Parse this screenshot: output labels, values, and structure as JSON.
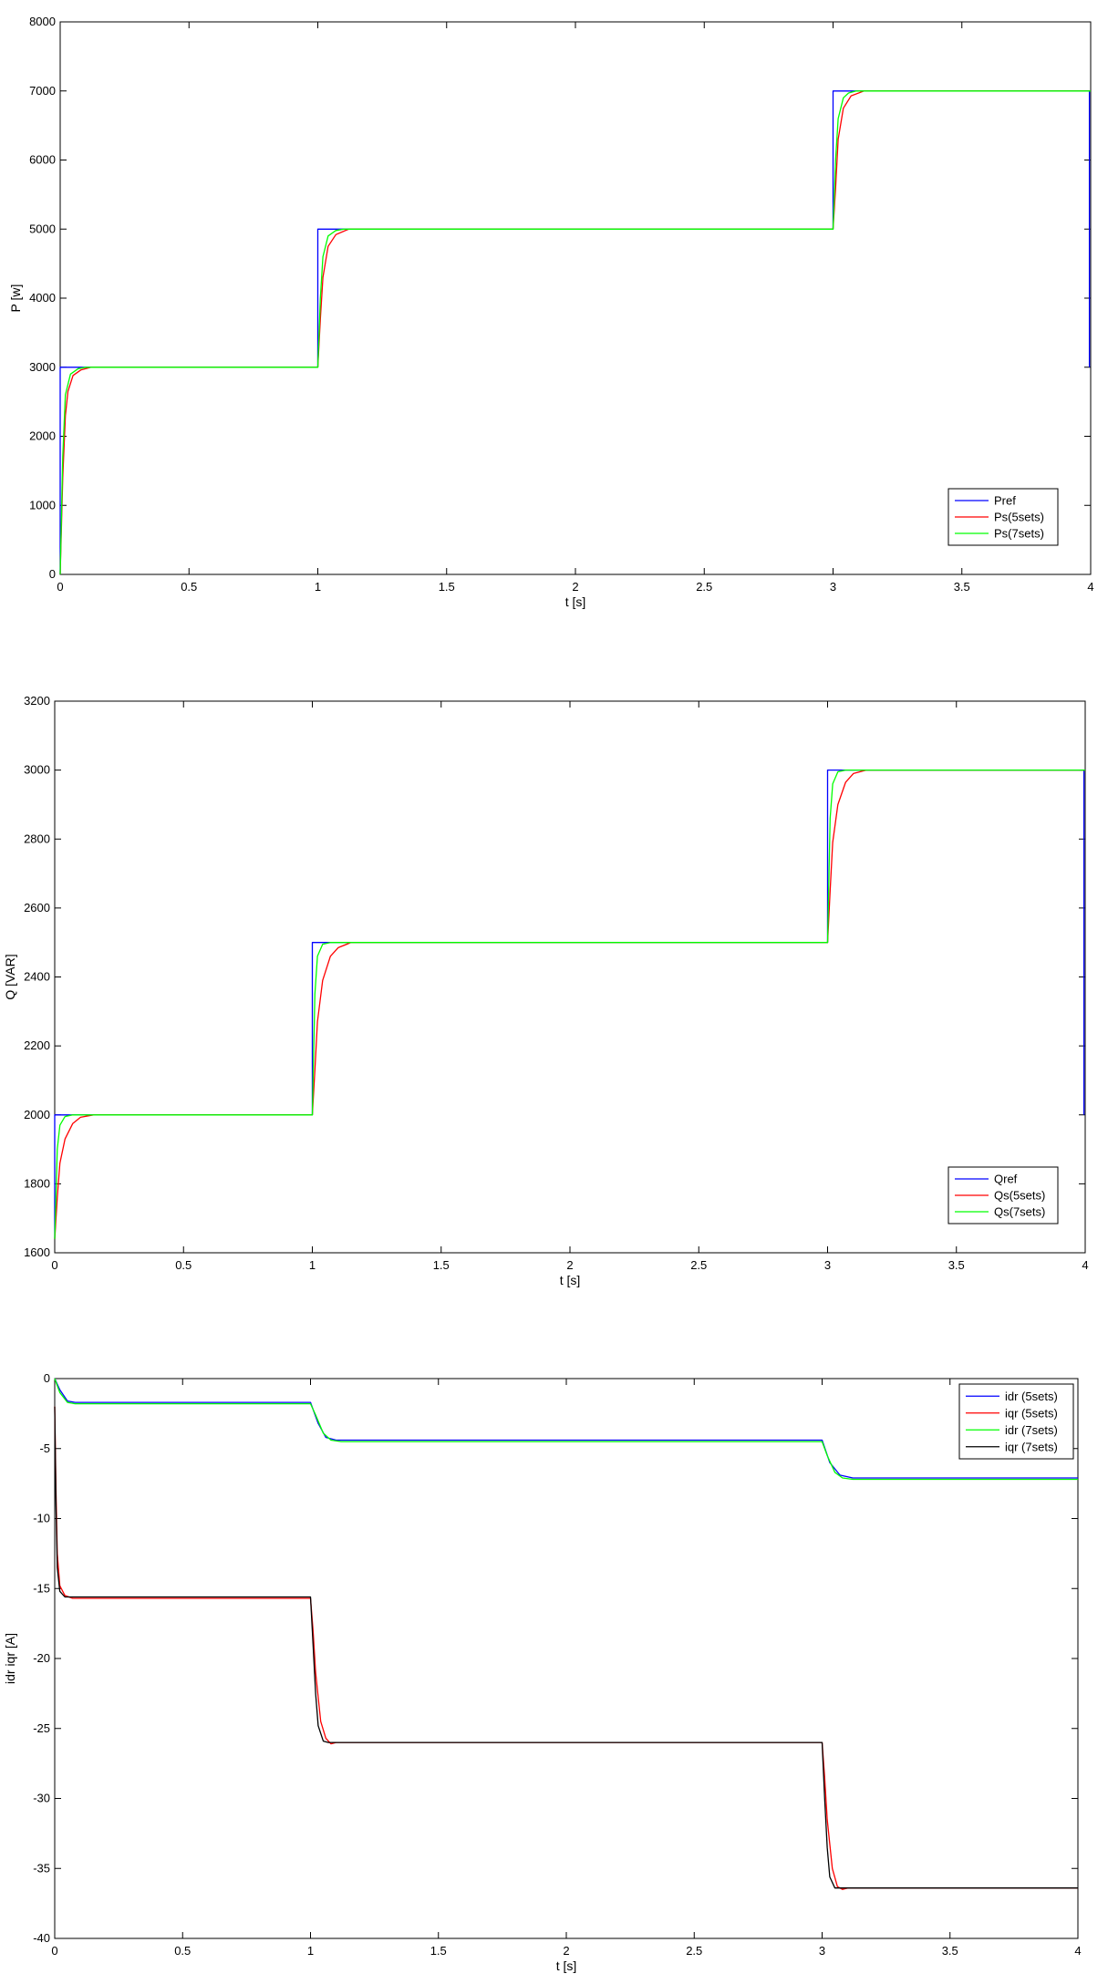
{
  "chart_data": [
    {
      "type": "line",
      "xlabel": "t [s]",
      "ylabel": "P [w]",
      "xlim": [
        0,
        4
      ],
      "ylim": [
        0,
        8000
      ],
      "xticks": [
        0,
        0.5,
        1,
        1.5,
        2,
        2.5,
        3,
        3.5,
        4
      ],
      "xtick_labels": [
        "0",
        "0.5",
        "1",
        "1.5",
        "2",
        "2.5",
        "3",
        "3.5",
        "4"
      ],
      "yticks": [
        0,
        1000,
        2000,
        3000,
        4000,
        5000,
        6000,
        7000,
        8000
      ],
      "ytick_labels": [
        "0",
        "1000",
        "2000",
        "3000",
        "4000",
        "5000",
        "6000",
        "7000",
        "8000"
      ],
      "grid": false,
      "legend_position": "bottom-right",
      "series": [
        {
          "name": "Pref",
          "color": "#0000ff",
          "x": [
            0,
            0,
            1,
            1,
            3,
            3,
            3.995,
            3.995
          ],
          "y": [
            0,
            3000,
            3000,
            5000,
            5000,
            7000,
            7000,
            3000
          ]
        },
        {
          "name": "Ps(5sets)",
          "color": "#ff0000",
          "x": [
            0,
            0.01,
            0.02,
            0.03,
            0.05,
            0.08,
            0.12,
            1,
            1.01,
            1.02,
            1.04,
            1.07,
            1.12,
            3,
            3.01,
            3.02,
            3.04,
            3.07,
            3.12,
            4
          ],
          "y": [
            0,
            1400,
            2300,
            2650,
            2880,
            2960,
            3000,
            3000,
            3700,
            4300,
            4750,
            4920,
            5000,
            5000,
            5600,
            6300,
            6750,
            6930,
            7000,
            7000
          ]
        },
        {
          "name": "Ps(7sets)",
          "color": "#00ff00",
          "x": [
            0,
            0.01,
            0.02,
            0.04,
            0.07,
            0.1,
            1,
            1.01,
            1.02,
            1.04,
            1.07,
            1.1,
            3,
            3.01,
            3.02,
            3.04,
            3.06,
            3.09,
            4
          ],
          "y": [
            0,
            1700,
            2600,
            2900,
            2980,
            3000,
            3000,
            4000,
            4600,
            4900,
            4980,
            5000,
            5000,
            6000,
            6600,
            6900,
            6970,
            7000,
            7000
          ]
        }
      ]
    },
    {
      "type": "line",
      "xlabel": "t [s]",
      "ylabel": "Q [VAR]",
      "xlim": [
        0,
        4
      ],
      "ylim": [
        1600,
        3200
      ],
      "xticks": [
        0,
        0.5,
        1,
        1.5,
        2,
        2.5,
        3,
        3.5,
        4
      ],
      "xtick_labels": [
        "0",
        "0.5",
        "1",
        "1.5",
        "2",
        "2.5",
        "3",
        "3.5",
        "4"
      ],
      "yticks": [
        1600,
        1800,
        2000,
        2200,
        2400,
        2600,
        2800,
        3000,
        3200
      ],
      "ytick_labels": [
        "1600",
        "1800",
        "2000",
        "2200",
        "2400",
        "2600",
        "2800",
        "3000",
        "3200"
      ],
      "grid": false,
      "legend_position": "bottom-right",
      "series": [
        {
          "name": "Qref",
          "color": "#0000ff",
          "x": [
            0,
            0,
            1,
            1,
            3,
            3,
            3.995,
            3.995
          ],
          "y": [
            1640,
            2000,
            2000,
            2500,
            2500,
            3000,
            3000,
            2000
          ]
        },
        {
          "name": "Qs(5sets)",
          "color": "#ff0000",
          "x": [
            0,
            0.01,
            0.02,
            0.04,
            0.07,
            0.1,
            0.15,
            1,
            1.01,
            1.02,
            1.04,
            1.07,
            1.1,
            1.15,
            3,
            3.01,
            3.02,
            3.04,
            3.07,
            3.1,
            3.15,
            4
          ],
          "y": [
            1640,
            1760,
            1860,
            1930,
            1975,
            1993,
            2000,
            2000,
            2130,
            2270,
            2390,
            2460,
            2485,
            2500,
            2500,
            2650,
            2790,
            2900,
            2965,
            2990,
            3000,
            3000
          ]
        },
        {
          "name": "Qs(7sets)",
          "color": "#00ff00",
          "x": [
            0,
            0.01,
            0.02,
            0.04,
            0.07,
            1,
            1.01,
            1.02,
            1.04,
            1.07,
            3,
            3.01,
            3.02,
            3.04,
            3.07,
            4
          ],
          "y": [
            1640,
            1900,
            1970,
            1995,
            2000,
            2000,
            2350,
            2460,
            2495,
            2500,
            2500,
            2860,
            2960,
            2995,
            3000,
            3000
          ]
        }
      ]
    },
    {
      "type": "line",
      "xlabel": "t [s]",
      "ylabel": "idr iqr [A]",
      "xlim": [
        0,
        4
      ],
      "ylim": [
        -40,
        0
      ],
      "xticks": [
        0,
        0.5,
        1,
        1.5,
        2,
        2.5,
        3,
        3.5,
        4
      ],
      "xtick_labels": [
        "0",
        "0.5",
        "1",
        "1.5",
        "2",
        "2.5",
        "3",
        "3.5",
        "4"
      ],
      "yticks": [
        -40,
        -35,
        -30,
        -25,
        -20,
        -15,
        -10,
        -5,
        0
      ],
      "ytick_labels": [
        "-40",
        "-35",
        "-30",
        "-25",
        "-20",
        "-15",
        "-10",
        "-5",
        "0"
      ],
      "grid": false,
      "legend_position": "top-right",
      "series": [
        {
          "name": "idr (5sets)",
          "color": "#0000ff",
          "x": [
            0,
            0.02,
            0.05,
            0.08,
            1,
            1.03,
            1.06,
            1.1,
            3,
            3.03,
            3.07,
            3.12,
            4
          ],
          "y": [
            0,
            -0.8,
            -1.6,
            -1.7,
            -1.7,
            -3.2,
            -4.2,
            -4.4,
            -4.4,
            -6.0,
            -6.9,
            -7.1,
            -7.1
          ]
        },
        {
          "name": "iqr (5sets)",
          "color": "#ff0000",
          "x": [
            0,
            0.005,
            0.01,
            0.02,
            0.04,
            0.07,
            0.1,
            1,
            1.01,
            1.02,
            1.04,
            1.06,
            1.08,
            1.1,
            3,
            3.01,
            3.02,
            3.04,
            3.06,
            3.08,
            3.1,
            4
          ],
          "y": [
            -2,
            -8,
            -12.5,
            -14.8,
            -15.5,
            -15.7,
            -15.7,
            -15.7,
            -18,
            -21,
            -24.5,
            -25.7,
            -26.1,
            -26,
            -26,
            -28.5,
            -31.5,
            -35,
            -36.3,
            -36.5,
            -36.4,
            -36.4
          ]
        },
        {
          "name": "idr (7sets)",
          "color": "#00ff00",
          "x": [
            0,
            0.02,
            0.05,
            0.08,
            1,
            1.02,
            1.05,
            1.08,
            1.12,
            3,
            3.02,
            3.05,
            3.08,
            3.12,
            4
          ],
          "y": [
            0,
            -1.0,
            -1.7,
            -1.8,
            -1.8,
            -2.6,
            -3.9,
            -4.4,
            -4.5,
            -4.5,
            -5.5,
            -6.7,
            -7.1,
            -7.2,
            -7.2
          ]
        },
        {
          "name": "iqr (7sets)",
          "color": "#000000",
          "x": [
            0,
            0.005,
            0.01,
            0.02,
            0.04,
            0.07,
            1,
            1.01,
            1.02,
            1.03,
            1.05,
            1.07,
            3,
            3.01,
            3.02,
            3.03,
            3.05,
            3.07,
            4
          ],
          "y": [
            -2,
            -9,
            -13.5,
            -15.2,
            -15.6,
            -15.6,
            -15.6,
            -19,
            -22.5,
            -24.8,
            -25.9,
            -26,
            -26,
            -30,
            -33.5,
            -35.6,
            -36.4,
            -36.4,
            -36.4
          ]
        }
      ]
    }
  ]
}
